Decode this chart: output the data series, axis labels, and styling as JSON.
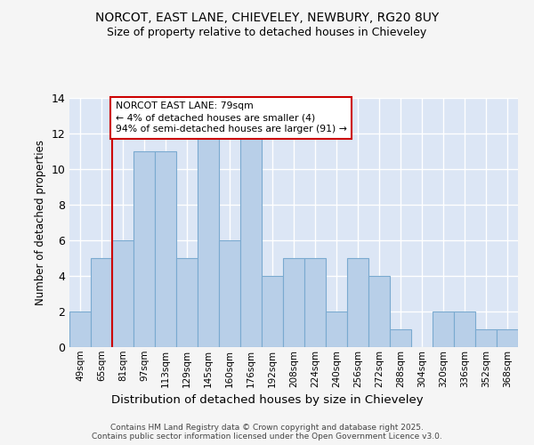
{
  "title_line1": "NORCOT, EAST LANE, CHIEVELEY, NEWBURY, RG20 8UY",
  "title_line2": "Size of property relative to detached houses in Chieveley",
  "xlabel": "Distribution of detached houses by size in Chieveley",
  "ylabel": "Number of detached properties",
  "categories": [
    "49sqm",
    "65sqm",
    "81sqm",
    "97sqm",
    "113sqm",
    "129sqm",
    "145sqm",
    "160sqm",
    "176sqm",
    "192sqm",
    "208sqm",
    "224sqm",
    "240sqm",
    "256sqm",
    "272sqm",
    "288sqm",
    "304sqm",
    "320sqm",
    "336sqm",
    "352sqm",
    "368sqm"
  ],
  "values": [
    2,
    5,
    6,
    11,
    11,
    5,
    12,
    6,
    12,
    4,
    5,
    5,
    2,
    5,
    4,
    1,
    0,
    2,
    2,
    1,
    1
  ],
  "bar_color": "#b8cfe8",
  "bar_edge_color": "#7aaad0",
  "plot_bg_color": "#dce6f5",
  "grid_color": "#ffffff",
  "fig_bg_color": "#f5f5f5",
  "annotation_text": "NORCOT EAST LANE: 79sqm\n← 4% of detached houses are smaller (4)\n94% of semi-detached houses are larger (91) →",
  "marker_color": "#cc0000",
  "ylim": [
    0,
    14
  ],
  "yticks": [
    0,
    2,
    4,
    6,
    8,
    10,
    12,
    14
  ],
  "footer_line1": "Contains HM Land Registry data © Crown copyright and database right 2025.",
  "footer_line2": "Contains public sector information licensed under the Open Government Licence v3.0."
}
